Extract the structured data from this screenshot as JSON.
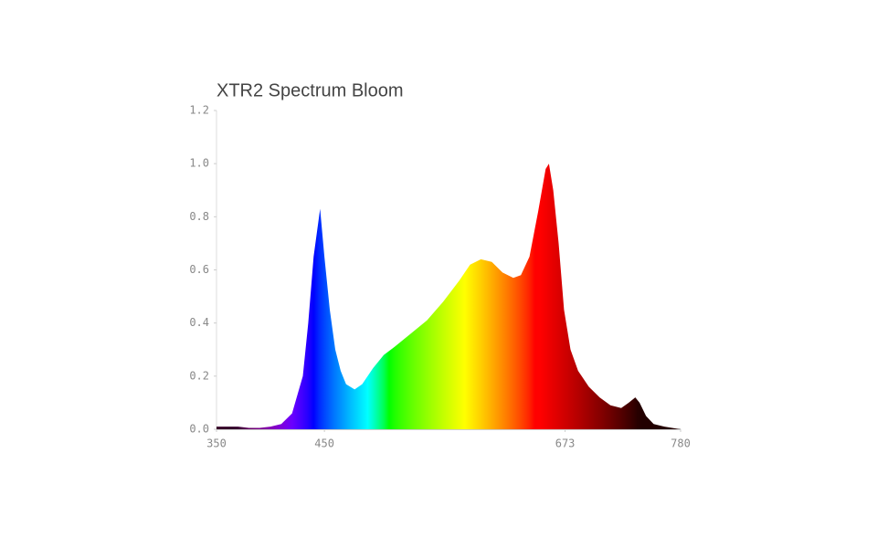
{
  "chart_data": {
    "type": "area",
    "title": "XTR2 Spectrum Bloom",
    "x": [
      350,
      360,
      370,
      380,
      390,
      400,
      410,
      420,
      430,
      435,
      440,
      446,
      450,
      455,
      460,
      465,
      470,
      478,
      485,
      495,
      505,
      515,
      530,
      545,
      560,
      575,
      585,
      595,
      605,
      615,
      625,
      632,
      640,
      648,
      655,
      658,
      662,
      667,
      672,
      678,
      685,
      695,
      705,
      715,
      725,
      732,
      738,
      742,
      748,
      755,
      765,
      780
    ],
    "values": [
      0.01,
      0.01,
      0.01,
      0.005,
      0.005,
      0.01,
      0.02,
      0.06,
      0.2,
      0.4,
      0.65,
      0.83,
      0.65,
      0.45,
      0.3,
      0.22,
      0.17,
      0.15,
      0.17,
      0.23,
      0.28,
      0.31,
      0.36,
      0.41,
      0.48,
      0.56,
      0.62,
      0.64,
      0.63,
      0.59,
      0.57,
      0.58,
      0.65,
      0.82,
      0.98,
      1.0,
      0.9,
      0.7,
      0.45,
      0.3,
      0.22,
      0.16,
      0.12,
      0.09,
      0.08,
      0.1,
      0.12,
      0.1,
      0.05,
      0.02,
      0.01,
      0
    ],
    "xlim": [
      350,
      780
    ],
    "xticks": [
      350,
      450,
      673,
      780
    ],
    "ylim": [
      0,
      1.2
    ],
    "yticks": [
      {
        "value": 0,
        "label": "0.0"
      },
      0.2,
      0.4,
      0.6,
      0.8,
      {
        "value": 1,
        "label": "1.0"
      },
      1.2
    ]
  }
}
